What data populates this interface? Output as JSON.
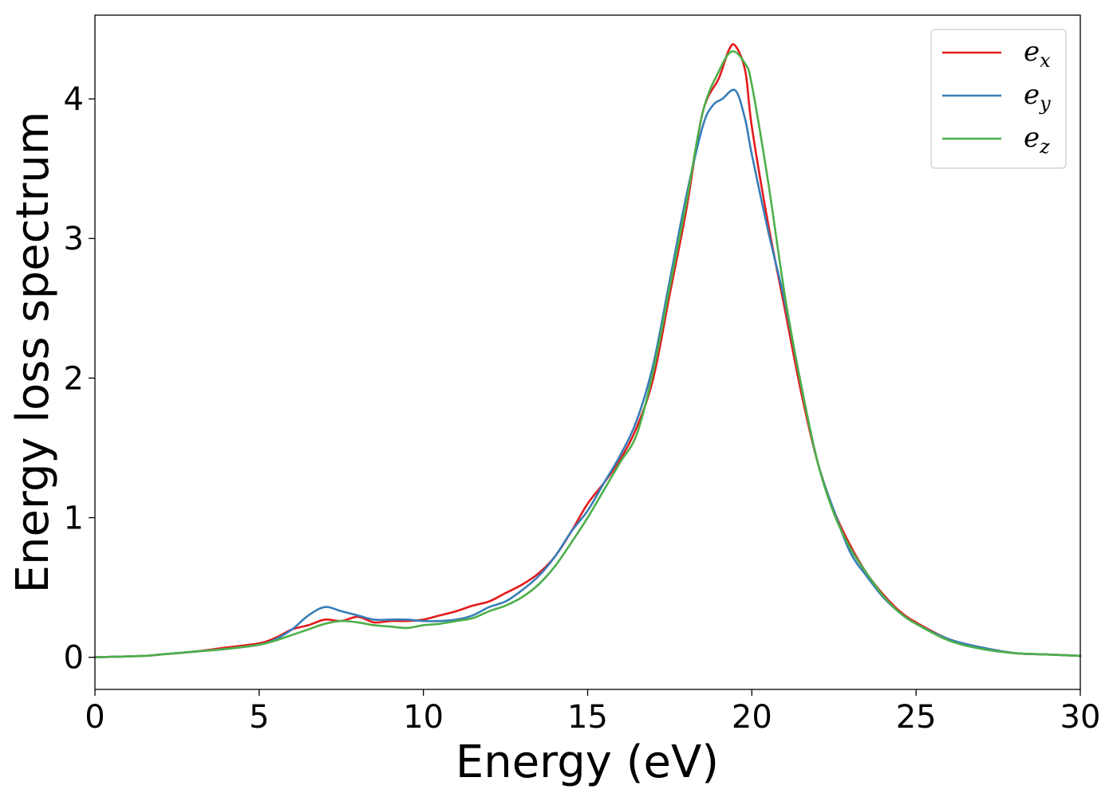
{
  "chart_data": {
    "type": "line",
    "title": "",
    "xlabel": "Energy (eV)",
    "ylabel": "Energy loss spectrum",
    "xlim": [
      0,
      30
    ],
    "ylim": [
      -0.23,
      4.6
    ],
    "xticks": [
      0,
      5,
      10,
      15,
      20,
      25,
      30
    ],
    "yticks": [
      0,
      1,
      2,
      3,
      4
    ],
    "grid": false,
    "legend_position": "top-right",
    "series": [
      {
        "name": "x",
        "color": "#e41a1c",
        "x": [
          0,
          1.5,
          2,
          3,
          4,
          5,
          5.5,
          6,
          6.5,
          7,
          7.5,
          8,
          8.5,
          9,
          9.5,
          10,
          10.5,
          11,
          11.5,
          12,
          12.5,
          13,
          13.5,
          14,
          14.5,
          15,
          15.5,
          16,
          16.5,
          17,
          17.5,
          18,
          18.5,
          19,
          19.3,
          19.5,
          19.8,
          20,
          20.5,
          21,
          21.5,
          22,
          22.5,
          23,
          23.5,
          24,
          24.5,
          25,
          26,
          27,
          28,
          29,
          30
        ],
        "values": [
          0,
          0.01,
          0.02,
          0.04,
          0.07,
          0.1,
          0.14,
          0.2,
          0.23,
          0.27,
          0.26,
          0.29,
          0.25,
          0.26,
          0.26,
          0.27,
          0.3,
          0.33,
          0.37,
          0.4,
          0.46,
          0.52,
          0.6,
          0.72,
          0.9,
          1.1,
          1.25,
          1.42,
          1.65,
          2.0,
          2.6,
          3.2,
          3.9,
          4.15,
          4.35,
          4.38,
          4.2,
          3.8,
          3.1,
          2.5,
          1.9,
          1.4,
          1.05,
          0.8,
          0.6,
          0.45,
          0.33,
          0.25,
          0.13,
          0.07,
          0.03,
          0.02,
          0.01
        ]
      },
      {
        "name": "y",
        "color": "#377eb8",
        "x": [
          0,
          1.5,
          2,
          3,
          4,
          5,
          5.5,
          6,
          6.5,
          7,
          7.5,
          8,
          8.5,
          9,
          9.5,
          10,
          10.5,
          11,
          11.5,
          12,
          12.5,
          13,
          13.5,
          14,
          14.5,
          15,
          15.5,
          16,
          16.5,
          17,
          17.5,
          18,
          18.5,
          18.8,
          19.1,
          19.5,
          19.8,
          20,
          20.5,
          21,
          21.5,
          22,
          22.5,
          23,
          23.5,
          24,
          24.5,
          25,
          26,
          27,
          28,
          29,
          30
        ],
        "values": [
          0,
          0.01,
          0.02,
          0.04,
          0.06,
          0.09,
          0.13,
          0.2,
          0.3,
          0.36,
          0.33,
          0.3,
          0.27,
          0.27,
          0.27,
          0.26,
          0.26,
          0.27,
          0.3,
          0.36,
          0.4,
          0.48,
          0.58,
          0.72,
          0.9,
          1.05,
          1.25,
          1.45,
          1.7,
          2.1,
          2.7,
          3.3,
          3.8,
          3.95,
          4.0,
          4.06,
          3.85,
          3.6,
          3.05,
          2.55,
          1.95,
          1.4,
          1.05,
          0.75,
          0.58,
          0.43,
          0.32,
          0.24,
          0.13,
          0.07,
          0.03,
          0.02,
          0.01
        ]
      },
      {
        "name": "z",
        "color": "#4daf4a",
        "x": [
          0,
          1.5,
          2,
          3,
          4,
          5,
          5.5,
          6,
          6.5,
          7,
          7.5,
          8,
          8.5,
          9,
          9.5,
          10,
          10.5,
          11,
          11.5,
          12,
          12.5,
          13,
          13.5,
          14,
          14.5,
          15,
          15.5,
          16,
          16.5,
          17,
          17.5,
          18,
          18.5,
          19,
          19.4,
          19.8,
          20,
          20.5,
          21,
          21.5,
          22,
          22.5,
          23,
          23.5,
          24,
          24.5,
          25,
          26,
          27,
          28,
          29,
          30
        ],
        "values": [
          0,
          0.01,
          0.02,
          0.04,
          0.06,
          0.09,
          0.12,
          0.16,
          0.2,
          0.24,
          0.26,
          0.25,
          0.23,
          0.22,
          0.21,
          0.23,
          0.24,
          0.26,
          0.28,
          0.33,
          0.37,
          0.43,
          0.52,
          0.65,
          0.82,
          1.0,
          1.2,
          1.4,
          1.6,
          2.05,
          2.65,
          3.25,
          3.9,
          4.2,
          4.34,
          4.25,
          4.1,
          3.4,
          2.6,
          1.95,
          1.4,
          1.03,
          0.78,
          0.6,
          0.44,
          0.32,
          0.24,
          0.12,
          0.06,
          0.03,
          0.02,
          0.01
        ]
      }
    ]
  }
}
